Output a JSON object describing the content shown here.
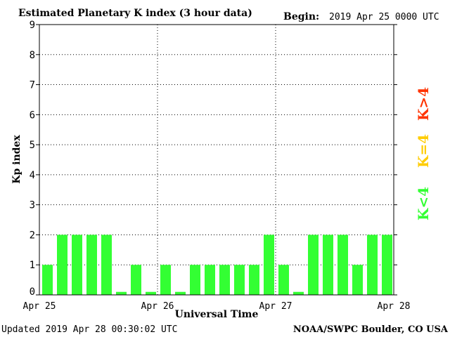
{
  "header": {
    "title": "Estimated Planetary K index (3 hour data)",
    "begin_label": "Begin:",
    "begin_value": "2019 Apr 25 0000 UTC"
  },
  "footer": {
    "updated": "Updated 2019 Apr 28 00:30:02 UTC",
    "source": "NOAA/SWPC Boulder, CO USA"
  },
  "legend": {
    "items": [
      {
        "label": "K<4",
        "color": "#33ff33"
      },
      {
        "label": "K=4",
        "color": "#ffcc00"
      },
      {
        "label": "K>4",
        "color": "#ff3300"
      }
    ]
  },
  "chart_data": {
    "type": "bar",
    "title": "Estimated Planetary K index (3 hour data)",
    "xlabel": "Universal Time",
    "ylabel": "Kp index",
    "ylim": [
      0,
      9
    ],
    "yticks": [
      "0",
      "1",
      "2",
      "3",
      "4",
      "5",
      "6",
      "7",
      "8",
      "9"
    ],
    "xticks": [
      "Apr 25",
      "Apr 26",
      "Apr 27",
      "Apr 28"
    ],
    "grid": true,
    "bar_color": "#33ff33",
    "values": [
      1,
      2,
      2,
      2,
      2,
      0.1,
      1,
      0.1,
      1,
      0.1,
      1,
      1,
      1,
      1,
      1,
      2,
      1,
      0.1,
      2,
      2,
      2,
      1,
      2,
      2
    ]
  }
}
